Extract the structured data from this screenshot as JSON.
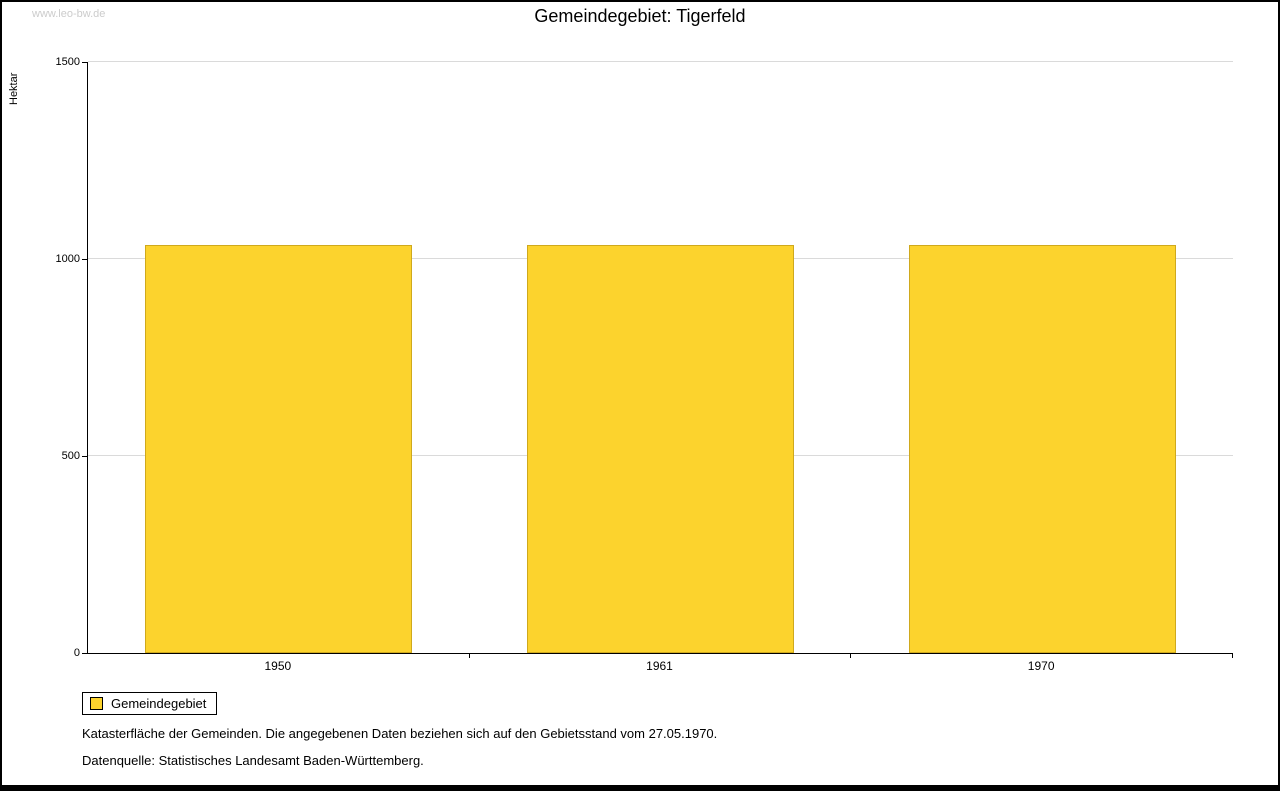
{
  "watermark": "www.leo-bw.de",
  "title": "Gemeindegebiet: Tigerfeld",
  "chart_data": {
    "type": "bar",
    "title": "Gemeindegebiet: Tigerfeld",
    "categories": [
      "1950",
      "1961",
      "1970"
    ],
    "series": [
      {
        "name": "Gemeindegebiet",
        "values": [
          1035,
          1035,
          1035
        ],
        "color": "#fcd32d"
      }
    ],
    "xlabel": "",
    "ylabel": "Hektar",
    "ylim": [
      0,
      1500
    ],
    "yticks": [
      0,
      500,
      1000,
      1500
    ],
    "grid": true,
    "legend_position": "bottom-left"
  },
  "legend": {
    "items": [
      {
        "label": "Gemeindegebiet",
        "color": "#fcd32d"
      }
    ]
  },
  "footnotes": [
    "Katasterfläche der Gemeinden. Die angegebenen Daten beziehen sich auf den Gebietsstand vom 27.05.1970.",
    "Datenquelle: Statistisches Landesamt Baden-Württemberg."
  ]
}
